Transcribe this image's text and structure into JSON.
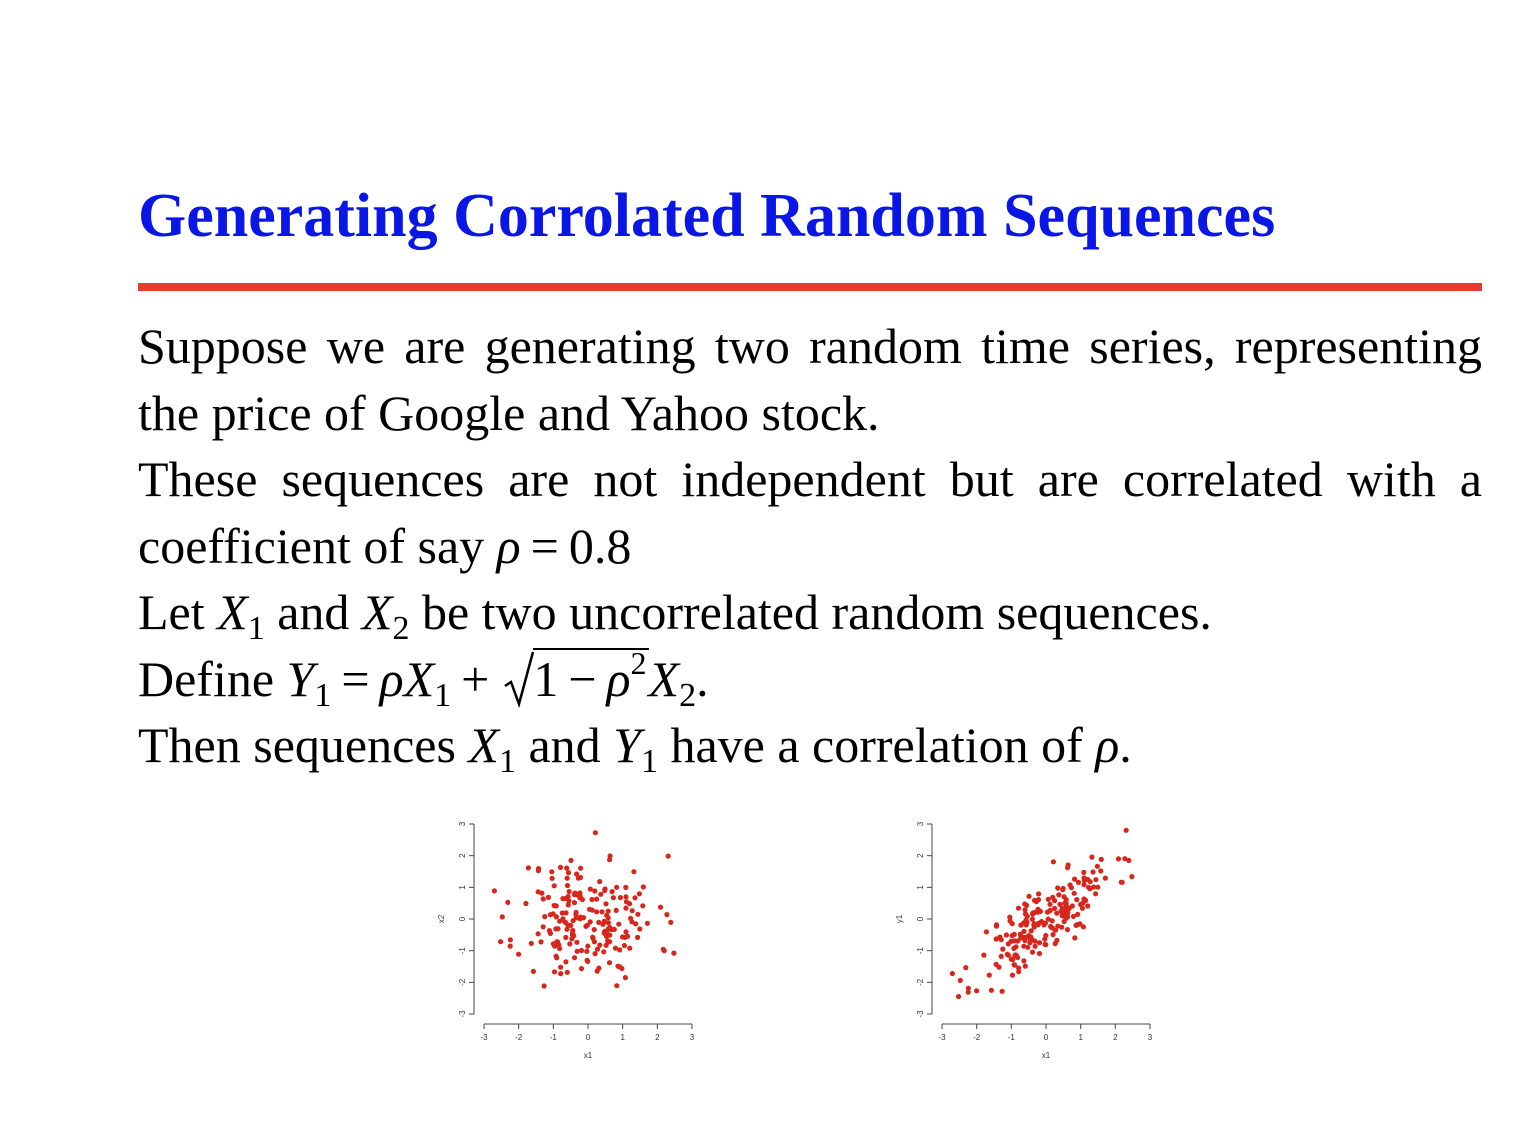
{
  "slide": {
    "title": "Generating Corrolated Random Sequences",
    "title_color": "#0a16e6",
    "rule_color": "#e83a2e"
  },
  "body": {
    "para1": "Suppose we are generating two random time series, representing the price of Google and Yahoo stock.",
    "para2_text": "These sequences are not independent but are correlated with a coefficient of say ",
    "rho_symbol": "ρ",
    "equals": "=",
    "rho_value": "0.8",
    "para3_a": "Let ",
    "para3_b": " and ",
    "para3_c": " be two uncorrelated random sequences.",
    "para4_a": "Define ",
    "para4_end": ".",
    "para5_a": "Then sequences ",
    "para5_b": " and ",
    "para5_c": " have a correlation of ",
    "para5_end": ".",
    "var_X": "X",
    "var_Y": "Y",
    "sub_1": "1",
    "sub_2": "2",
    "sup_2": "2",
    "plus": "+",
    "minus": "−",
    "one": "1"
  },
  "chart_data": [
    {
      "type": "scatter",
      "xlabel": "x1",
      "ylabel": "x2",
      "xlim": [
        -3,
        3
      ],
      "ylim": [
        -3,
        3
      ],
      "xticks": [
        "-3",
        "-2",
        "-1",
        "0",
        "1",
        "2",
        "3"
      ],
      "yticks": [
        "-3",
        "-2",
        "-1",
        "0",
        "1",
        "2",
        "3"
      ],
      "color": "#d9261c",
      "correlation": 0.0,
      "n_points": 200,
      "seed": 11
    },
    {
      "type": "scatter",
      "xlabel": "x1",
      "ylabel": "y1",
      "xlim": [
        -3,
        3
      ],
      "ylim": [
        -3,
        3
      ],
      "xticks": [
        "-3",
        "-2",
        "-1",
        "0",
        "1",
        "2",
        "3"
      ],
      "yticks": [
        "-3",
        "-2",
        "-1",
        "0",
        "1",
        "2",
        "3"
      ],
      "color": "#d9261c",
      "correlation": 0.8,
      "n_points": 200,
      "seed": 11
    }
  ]
}
